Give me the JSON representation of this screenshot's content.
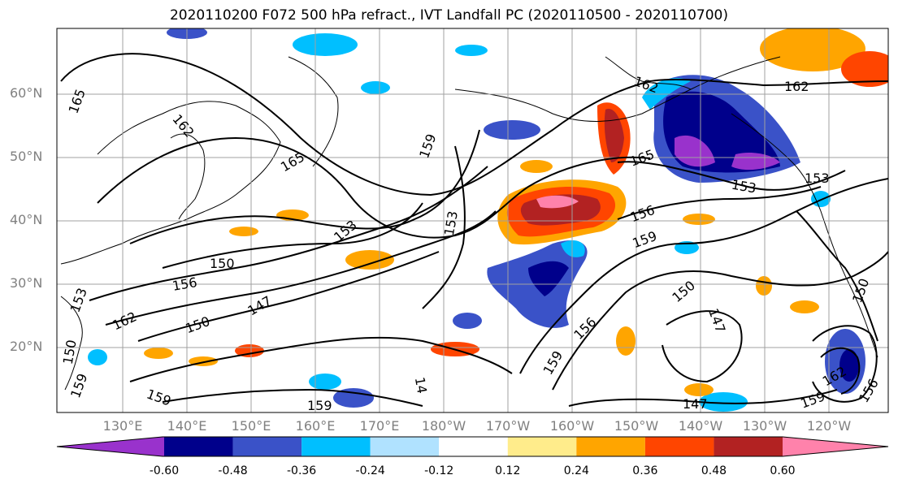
{
  "title": "2020110200 F072 500 hPa refract., IVT Landfall PC (2020110500 - 2020110700)",
  "lat_labels": [
    "60°N",
    "50°N",
    "40°N",
    "30°N",
    "20°N"
  ],
  "lon_labels": [
    "130°E",
    "140°E",
    "150°E",
    "160°E",
    "170°E",
    "180°W",
    "170°W",
    "160°W",
    "150°W",
    "140°W",
    "130°W",
    "120°W"
  ],
  "contour_labels": [
    "165",
    "162",
    "165",
    "159",
    "153",
    "150",
    "156",
    "162",
    "150",
    "147",
    "153",
    "150",
    "159",
    "159",
    "153",
    "165",
    "156",
    "159",
    "150",
    "147",
    "156",
    "159",
    "162",
    "153",
    "153",
    "162",
    "159",
    "162",
    "156",
    "147",
    "14",
    "150",
    "159",
    "165"
  ],
  "colorbar": {
    "ticks": [
      "-0.60",
      "-0.48",
      "-0.36",
      "-0.24",
      "-0.12",
      "0.12",
      "0.24",
      "0.36",
      "0.48",
      "0.60"
    ],
    "colors": [
      "#9932CC",
      "#00008B",
      "#3A52C8",
      "#00BFFF",
      "#B0E2FF",
      "#FFFFFF",
      "#FFEC8B",
      "#FFA500",
      "#FF4500",
      "#B22222",
      "#FF82AB"
    ]
  }
}
